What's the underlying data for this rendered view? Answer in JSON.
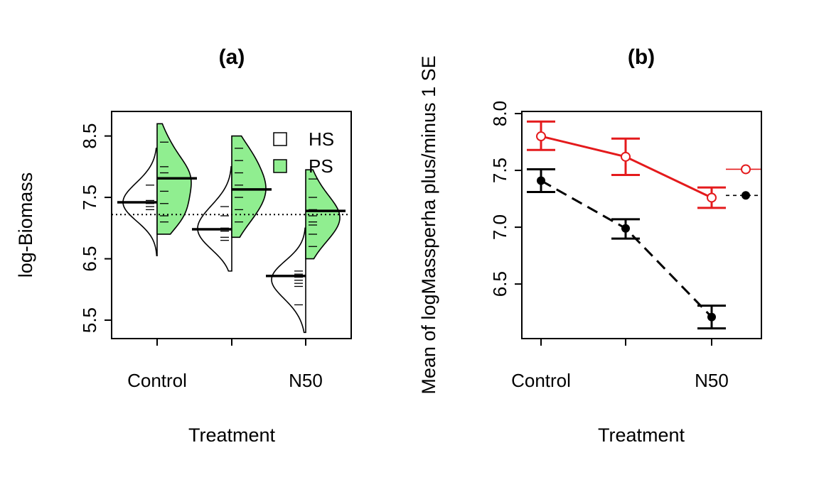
{
  "chart_data": [
    {
      "type": "beanplot",
      "title": "(a)",
      "xlabel": "Treatment",
      "ylabel": "log-Biomass",
      "ylim": [
        5.2,
        8.9
      ],
      "yticks": [
        "5.5",
        "6.5",
        "7.5",
        "8.5"
      ],
      "categories": [
        "Control",
        "",
        "N50"
      ],
      "overall_mean": 7.22,
      "legend": {
        "position": "top-right",
        "entries": [
          {
            "label": "HS",
            "color": "#ffffff"
          },
          {
            "label": "PS",
            "color": "#90ee90"
          }
        ]
      },
      "series": [
        {
          "name": "HS",
          "side": "left",
          "color": "#ffffff",
          "groups": [
            {
              "mean": 7.42,
              "ymin": 6.55,
              "ymax": 8.3,
              "obs": [
                7.4,
                7.45,
                7.7,
                7.35,
                7.3
              ]
            },
            {
              "mean": 6.98,
              "ymin": 6.3,
              "ymax": 8.0,
              "obs": [
                6.85,
                6.95,
                7.2,
                7.0,
                6.8,
                7.35
              ]
            },
            {
              "mean": 6.22,
              "ymin": 5.3,
              "ymax": 7.0,
              "obs": [
                6.2,
                6.22,
                6.25,
                6.15,
                6.05,
                5.75,
                6.3,
                6.1
              ]
            }
          ]
        },
        {
          "name": "PS",
          "side": "right",
          "color": "#90ee90",
          "groups": [
            {
              "mean": 7.81,
              "ymin": 6.9,
              "ymax": 8.7,
              "obs": [
                8.4,
                8.0,
                7.9,
                7.81,
                7.6,
                7.4,
                7.2,
                7.1
              ]
            },
            {
              "mean": 7.63,
              "ymin": 6.85,
              "ymax": 8.5,
              "obs": [
                8.3,
                8.1,
                7.9,
                7.7,
                7.63,
                7.5,
                7.3,
                7.1
              ]
            },
            {
              "mean": 7.28,
              "ymin": 6.5,
              "ymax": 7.95,
              "obs": [
                7.8,
                7.5,
                7.3,
                7.28,
                7.2,
                7.1,
                7.05,
                6.9,
                6.7
              ]
            }
          ]
        }
      ]
    },
    {
      "type": "line",
      "title": "(b)",
      "xlabel": "Treatment",
      "ylabel": "Mean of  logMassperha plus/minus 1 SE",
      "ylim": [
        6.1,
        8.0
      ],
      "yticks": [
        "6.5",
        "7.0",
        "7.5",
        "8.0"
      ],
      "categories": [
        "Control",
        "",
        "N50"
      ],
      "series": [
        {
          "marker": "open-circle",
          "color": "#e41a1c",
          "linestyle": "solid",
          "means": [
            7.8,
            7.62,
            7.26
          ],
          "se_lo": [
            7.68,
            7.46,
            7.17
          ],
          "se_hi": [
            7.93,
            7.78,
            7.35
          ],
          "overall": 7.51
        },
        {
          "marker": "filled-circle",
          "color": "#000000",
          "linestyle": "dashed",
          "means": [
            7.41,
            6.99,
            6.21
          ],
          "se_lo": [
            7.31,
            6.9,
            6.11
          ],
          "se_hi": [
            7.51,
            7.07,
            6.31
          ],
          "overall": 7.28
        }
      ]
    }
  ]
}
